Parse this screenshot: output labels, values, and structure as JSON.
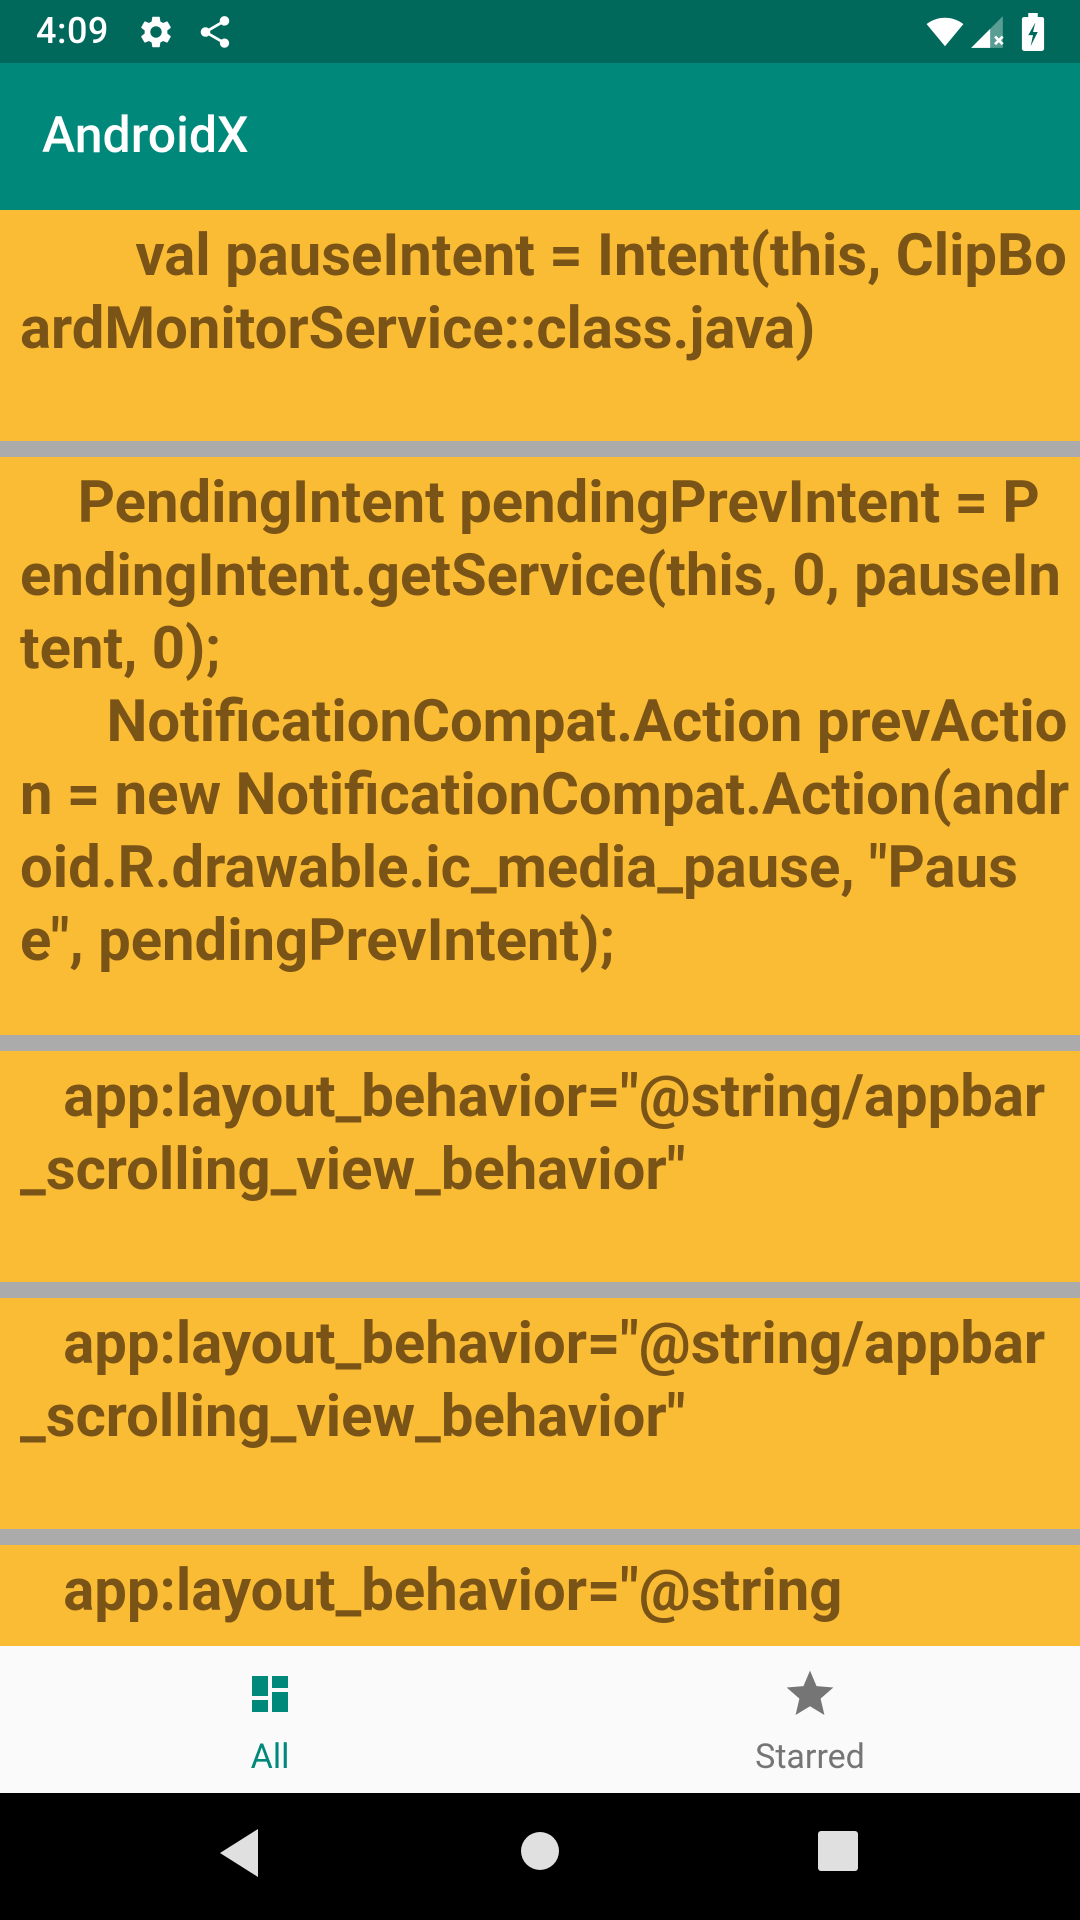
{
  "status_bar": {
    "time": "4:09",
    "left_icons": [
      "gear-icon",
      "share-icon"
    ],
    "right_icons": [
      "wifi-icon",
      "cell-signal-icon",
      "battery-charging-icon"
    ]
  },
  "app_bar": {
    "title": "AndroidX",
    "color": "#00897b"
  },
  "clips": [
    {
      "text": "        val pauseIntent = Intent(this, ClipBoardMonitorService::class.java)"
    },
    {
      "text": "    PendingIntent pendingPrevIntent = PendingIntent.getService(this, 0, pauseIntent, 0);\n      NotificationCompat.Action prevAction = new NotificationCompat.Action(android.R.drawable.ic_media_pause, \"Pause\", pendingPrevIntent);"
    },
    {
      "text": "   app:layout_behavior=\"@string/appbar_scrolling_view_behavior\""
    },
    {
      "text": "   app:layout_behavior=\"@string/appbar_scrolling_view_behavior\""
    },
    {
      "text": "   app:layout_behavior=\"@string"
    }
  ],
  "bottom_nav": {
    "items": [
      {
        "label": "All",
        "icon": "dashboard-icon",
        "selected": true
      },
      {
        "label": "Starred",
        "icon": "star-icon",
        "selected": false
      }
    ]
  },
  "system_nav": {
    "buttons": [
      "back-icon",
      "home-icon",
      "recents-icon"
    ]
  },
  "colors": {
    "card": "#fbbc35",
    "card_text": "#7a5417",
    "accent": "#00897b",
    "status_bar": "#00695c"
  }
}
